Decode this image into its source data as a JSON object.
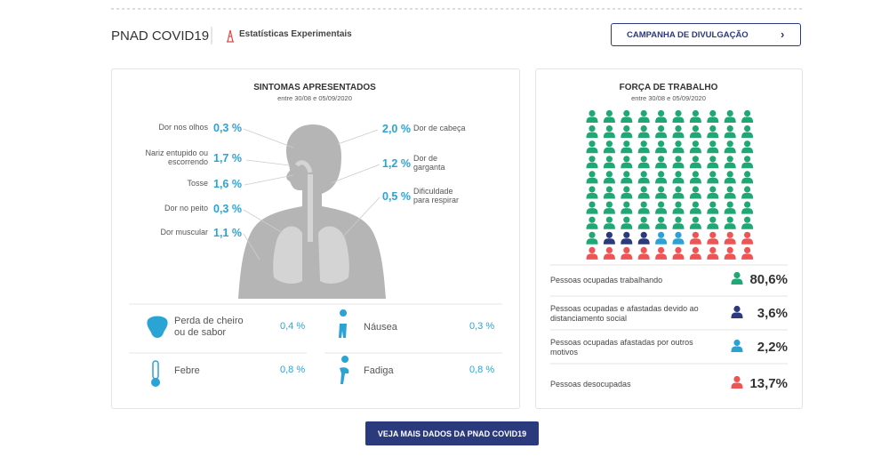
{
  "header": {
    "title": "PNAD COVID19",
    "tag": "Estatísticas Experimentais",
    "button": "CAMPANHA DE DIVULGAÇÃO"
  },
  "symptoms": {
    "title": "SINTOMAS APRESENTADOS",
    "subtitle": "entre 30/08 e 05/09/2020",
    "left": [
      {
        "label": "Dor nos olhos",
        "value": "0,3 %"
      },
      {
        "label": "Nariz entupido ou escorrendo",
        "value": "1,7 %"
      },
      {
        "label": "Tosse",
        "value": "1,6 %"
      },
      {
        "label": "Dor no peito",
        "value": "0,3 %"
      },
      {
        "label": "Dor muscular",
        "value": "1,1 %"
      }
    ],
    "right": [
      {
        "label": "Dor de cabeça",
        "value": "2,0 %"
      },
      {
        "label": "Dor de garganta",
        "value": "1,2 %"
      },
      {
        "label": "Dificuldade para respirar",
        "value": "0,5 %"
      }
    ],
    "bottom": [
      {
        "label": "Perda de cheiro ou de sabor",
        "value": "0,4 %"
      },
      {
        "label": "Náusea",
        "value": "0,3 %"
      },
      {
        "label": "Febre",
        "value": "0,8 %"
      },
      {
        "label": "Fadiga",
        "value": "0,8 %"
      }
    ]
  },
  "workforce": {
    "type": "waffle",
    "title": "FORÇA DE TRABALHO",
    "subtitle": "entre 30/08 e 05/09/2020",
    "series": [
      {
        "name": "Pessoas ocupadas trabalhando",
        "color": "#1fa774",
        "value": 80.6,
        "value_label": "80,6%"
      },
      {
        "name": "Pessoas ocupadas e afastadas devido ao distanciamento social",
        "color": "#2b3a7c",
        "value": 3.6,
        "value_label": "3,6%"
      },
      {
        "name": "Pessoas ocupadas afastadas por outros motivos",
        "color": "#2ba2d3",
        "value": 2.2,
        "value_label": "2,2%"
      },
      {
        "name": "Pessoas desocupadas",
        "color": "#ef5454",
        "value": 13.7,
        "value_label": "13,7%"
      }
    ]
  },
  "footer_button": "VEJA MAIS DADOS DA PNAD COVID19"
}
